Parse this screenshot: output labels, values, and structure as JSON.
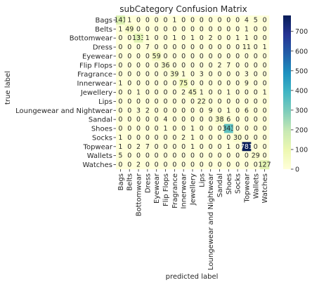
{
  "chart_data": {
    "type": "heatmap",
    "title": "subCategory Confusion Matrix",
    "xlabel": "predicted label",
    "ylabel": "true label",
    "labels": [
      "Bags",
      "Belts",
      "Bottomwear",
      "Dress",
      "Eyewear",
      "Flip Flops",
      "Fragrance",
      "Innerwear",
      "Jewellery",
      "Lips",
      "Loungewear and Nightwear",
      "Sandal",
      "Shoes",
      "Socks",
      "Topwear",
      "Wallets",
      "Watches"
    ],
    "matrix": [
      [
        141,
        1,
        0,
        0,
        0,
        0,
        1,
        0,
        0,
        0,
        0,
        0,
        0,
        0,
        4,
        5,
        0
      ],
      [
        1,
        49,
        0,
        0,
        0,
        0,
        0,
        0,
        0,
        0,
        0,
        0,
        0,
        0,
        1,
        0,
        0
      ],
      [
        0,
        0,
        133,
        1,
        0,
        0,
        1,
        0,
        1,
        0,
        2,
        0,
        0,
        1,
        1,
        0,
        0
      ],
      [
        0,
        0,
        0,
        7,
        0,
        0,
        0,
        0,
        0,
        0,
        0,
        0,
        0,
        0,
        11,
        0,
        1
      ],
      [
        0,
        0,
        0,
        0,
        59,
        0,
        0,
        0,
        0,
        0,
        0,
        0,
        0,
        0,
        0,
        0,
        0
      ],
      [
        0,
        0,
        0,
        0,
        0,
        36,
        0,
        0,
        0,
        0,
        0,
        2,
        7,
        0,
        0,
        0,
        0
      ],
      [
        0,
        0,
        0,
        0,
        0,
        0,
        39,
        1,
        0,
        3,
        0,
        0,
        0,
        0,
        3,
        0,
        0
      ],
      [
        1,
        0,
        0,
        0,
        0,
        0,
        0,
        75,
        0,
        0,
        0,
        0,
        0,
        0,
        9,
        0,
        0
      ],
      [
        0,
        0,
        1,
        0,
        0,
        0,
        0,
        2,
        45,
        1,
        0,
        0,
        1,
        0,
        0,
        0,
        1
      ],
      [
        0,
        0,
        0,
        0,
        0,
        0,
        0,
        0,
        0,
        22,
        0,
        0,
        0,
        0,
        0,
        0,
        0
      ],
      [
        0,
        0,
        3,
        2,
        0,
        0,
        0,
        0,
        0,
        0,
        9,
        0,
        1,
        0,
        6,
        0,
        0
      ],
      [
        0,
        0,
        0,
        0,
        0,
        4,
        0,
        0,
        0,
        0,
        0,
        38,
        6,
        0,
        0,
        0,
        0
      ],
      [
        0,
        0,
        0,
        0,
        0,
        1,
        0,
        0,
        1,
        0,
        0,
        0,
        343,
        0,
        0,
        0,
        0
      ],
      [
        1,
        0,
        0,
        0,
        0,
        0,
        0,
        2,
        1,
        0,
        0,
        0,
        0,
        30,
        0,
        0,
        0
      ],
      [
        1,
        0,
        2,
        7,
        0,
        0,
        0,
        0,
        1,
        0,
        0,
        0,
        1,
        0,
        781,
        0,
        0
      ],
      [
        5,
        0,
        0,
        0,
        0,
        0,
        0,
        0,
        0,
        0,
        0,
        0,
        0,
        0,
        0,
        29,
        0
      ],
      [
        0,
        0,
        2,
        0,
        0,
        0,
        0,
        0,
        0,
        0,
        0,
        0,
        0,
        0,
        0,
        0,
        127
      ]
    ],
    "colormap": "YlGnBu",
    "colorbar": {
      "min": 0,
      "max": 781,
      "ticks": [
        0,
        100,
        200,
        300,
        400,
        500,
        600,
        700
      ]
    },
    "annotations": true
  }
}
